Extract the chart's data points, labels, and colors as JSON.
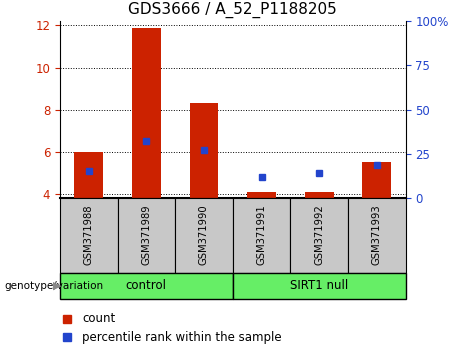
{
  "title": "GDS3666 / A_52_P1188205",
  "samples": [
    "GSM371988",
    "GSM371989",
    "GSM371990",
    "GSM371991",
    "GSM371992",
    "GSM371993"
  ],
  "count_values": [
    6.0,
    11.9,
    8.3,
    4.1,
    4.1,
    5.5
  ],
  "percentile_values": [
    5.1,
    6.5,
    6.1,
    4.8,
    5.0,
    5.4
  ],
  "ylim_left": [
    3.8,
    12.2
  ],
  "ylim_right": [
    0,
    100
  ],
  "yticks_left": [
    4,
    6,
    8,
    10,
    12
  ],
  "yticks_right": [
    0,
    25,
    50,
    75,
    100
  ],
  "ytick_right_labels": [
    "0",
    "25",
    "50",
    "75",
    "100%"
  ],
  "bar_color": "#cc2200",
  "blue_color": "#2244cc",
  "bar_width": 0.5,
  "tick_color_left": "#cc2200",
  "tick_color_right": "#2244cc",
  "bg_plot": "#ffffff",
  "bg_sample_label": "#c8c8c8",
  "bg_group_label": "#66ee66",
  "legend_count_label": "count",
  "legend_pct_label": "percentile rank within the sample",
  "genotype_label": "genotype/variation",
  "title_fontsize": 11,
  "groups_info": [
    {
      "label": "control",
      "start": 0,
      "end": 3
    },
    {
      "label": "SIRT1 null",
      "start": 3,
      "end": 6
    }
  ]
}
